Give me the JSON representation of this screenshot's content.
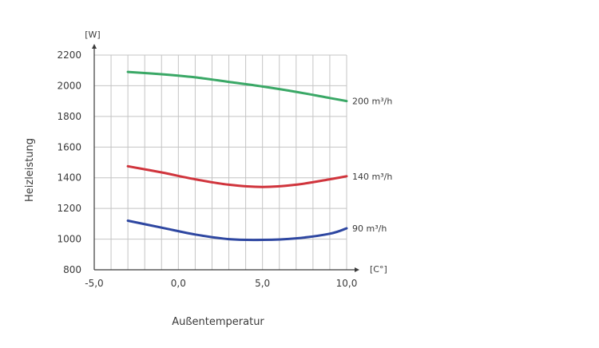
{
  "chart_data": {
    "type": "line",
    "xlabel": "Außentemperatur",
    "ylabel": "Heizleistung",
    "x_unit": "[C°]",
    "y_unit": "[W]",
    "xlim": [
      -5,
      10
    ],
    "ylim": [
      800,
      2200
    ],
    "x_ticks": [
      -5,
      0,
      5,
      10
    ],
    "x_tick_labels": [
      "-5,0",
      "0,0",
      "5,0",
      "10,0"
    ],
    "y_ticks": [
      800,
      1000,
      1200,
      1400,
      1600,
      1800,
      2000,
      2200
    ],
    "y_tick_labels": [
      "800",
      "1000",
      "1200",
      "1400",
      "1600",
      "1800",
      "2000",
      "2200"
    ],
    "grid": true,
    "series": [
      {
        "name": "200 m³/h",
        "color": "#3aa866",
        "x": [
          -3,
          -1,
          1,
          3,
          5,
          7,
          9,
          10
        ],
        "y": [
          2090,
          2075,
          2055,
          2025,
          1995,
          1960,
          1920,
          1900
        ]
      },
      {
        "name": "140 m³/h",
        "color": "#d0343c",
        "x": [
          -3,
          -1,
          1,
          3,
          5,
          7,
          9,
          10
        ],
        "y": [
          1475,
          1435,
          1390,
          1355,
          1340,
          1355,
          1390,
          1410
        ]
      },
      {
        "name": "90 m³/h",
        "color": "#2e47a1",
        "x": [
          -3,
          -1,
          1,
          3,
          5,
          7,
          9,
          10
        ],
        "y": [
          1120,
          1075,
          1030,
          1000,
          995,
          1005,
          1035,
          1070
        ]
      }
    ]
  }
}
